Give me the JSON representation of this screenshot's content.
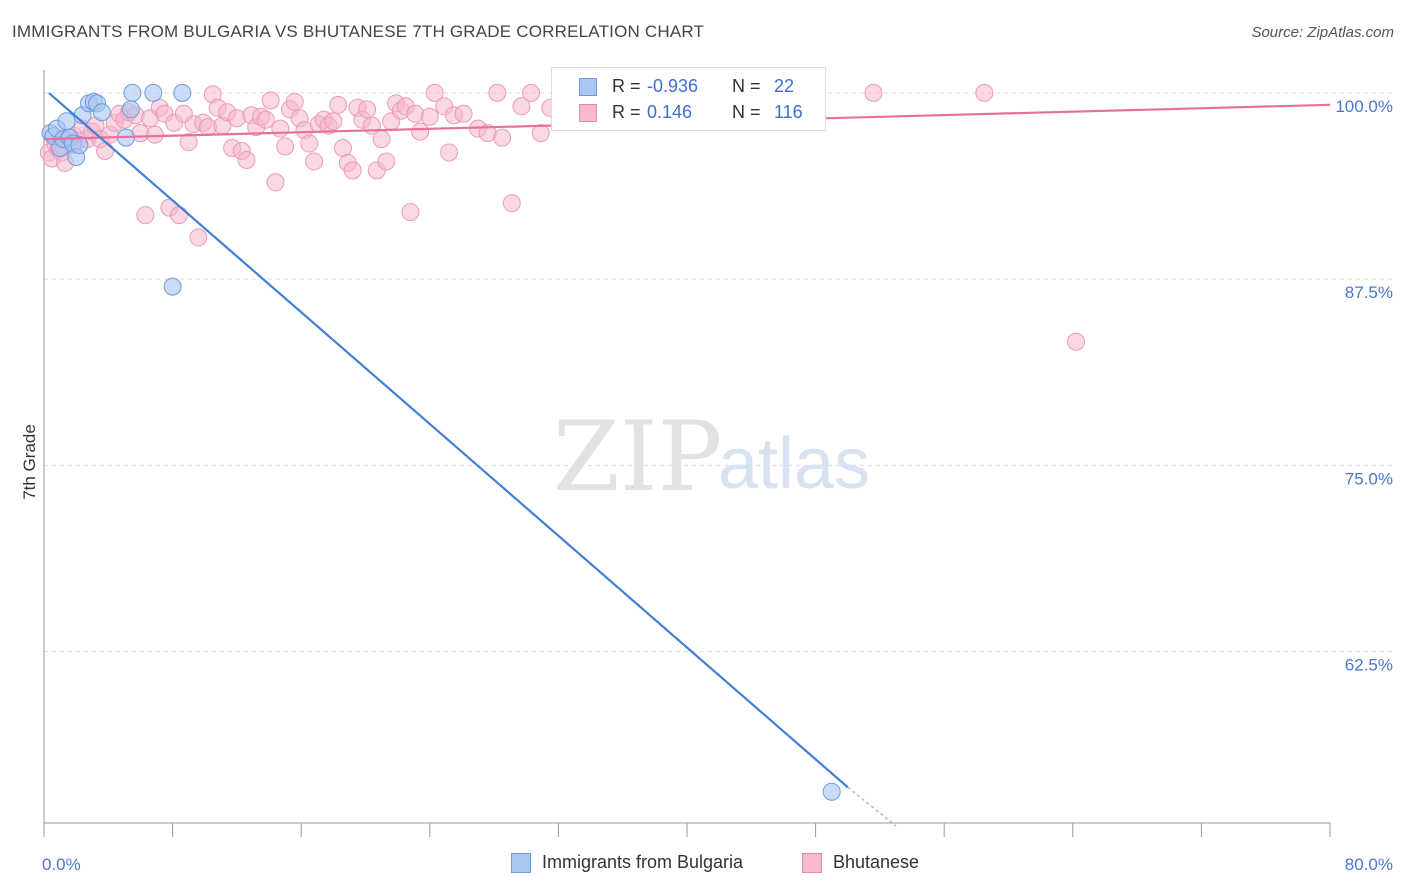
{
  "header": {
    "title": "IMMIGRANTS FROM BULGARIA VS BHUTANESE 7TH GRADE CORRELATION CHART",
    "source": "Source: ZipAtlas.com"
  },
  "watermark": {
    "zip": "ZIP",
    "atlas": "atlas"
  },
  "legend": {
    "rows": [
      {
        "r_label": "R =",
        "r_value": "-0.936",
        "n_label": "N =",
        "n_value": "22"
      },
      {
        "r_label": "R =",
        "r_value": "0.146",
        "n_label": "N =",
        "n_value": "116"
      }
    ]
  },
  "chart_data": {
    "type": "scatter",
    "title": "IMMIGRANTS FROM BULGARIA VS BHUTANESE 7TH GRADE CORRELATION CHART",
    "xlabel": "",
    "ylabel": "7th Grade",
    "xlim": [
      0,
      80
    ],
    "ylim": [
      51,
      101
    ],
    "x_tick_labels": [
      "0.0%",
      "80.0%"
    ],
    "y_ticks": [
      62.5,
      75.0,
      87.5,
      100.0
    ],
    "y_tick_labels": [
      "62.5%",
      "75.0%",
      "87.5%",
      "100.0%"
    ],
    "grid": true,
    "legend_position": "bottom",
    "colors": {
      "bulgaria": "#3f7fd6",
      "bhutanese": "#e8709a",
      "bulgaria_fill": "#a9c7f0",
      "bhutanese_fill": "#f5b8cc"
    },
    "series": [
      {
        "name": "Immigrants from Bulgaria",
        "r": -0.936,
        "n": 22,
        "trend": {
          "x": [
            0.3,
            50
          ],
          "y": [
            100.0,
            53.4
          ],
          "dash_to": [
            53,
            50.8
          ]
        },
        "points": [
          [
            0.4,
            97.3
          ],
          [
            0.6,
            97.1
          ],
          [
            0.8,
            97.6
          ],
          [
            1.0,
            96.3
          ],
          [
            1.2,
            96.9
          ],
          [
            1.4,
            98.1
          ],
          [
            1.6,
            97.0
          ],
          [
            1.8,
            96.6
          ],
          [
            2.0,
            95.7
          ],
          [
            2.2,
            96.5
          ],
          [
            2.4,
            98.5
          ],
          [
            2.8,
            99.3
          ],
          [
            3.1,
            99.4
          ],
          [
            3.3,
            99.3
          ],
          [
            3.6,
            98.7
          ],
          [
            5.1,
            97.0
          ],
          [
            5.4,
            98.9
          ],
          [
            5.5,
            100.0
          ],
          [
            6.8,
            100.0
          ],
          [
            8.6,
            100.0
          ],
          [
            8.0,
            87.0
          ],
          [
            49.0,
            53.1
          ]
        ]
      },
      {
        "name": "Bhutanese",
        "r": 0.146,
        "n": 116,
        "trend": {
          "x": [
            0,
            80
          ],
          "y": [
            96.9,
            99.2
          ]
        },
        "points": [
          [
            0.3,
            96.0
          ],
          [
            0.5,
            95.6
          ],
          [
            0.7,
            96.6
          ],
          [
            0.9,
            96.2
          ],
          [
            1.1,
            96.0
          ],
          [
            1.3,
            95.3
          ],
          [
            1.5,
            97.0
          ],
          [
            1.7,
            96.5
          ],
          [
            1.9,
            97.1
          ],
          [
            2.1,
            96.8
          ],
          [
            2.4,
            97.6
          ],
          [
            2.7,
            96.9
          ],
          [
            3.0,
            97.4
          ],
          [
            3.2,
            97.8
          ],
          [
            3.5,
            96.9
          ],
          [
            3.8,
            96.1
          ],
          [
            4.1,
            97.2
          ],
          [
            4.4,
            98.0
          ],
          [
            4.7,
            98.6
          ],
          [
            5.0,
            98.2
          ],
          [
            5.3,
            98.7
          ],
          [
            5.7,
            98.5
          ],
          [
            6.0,
            97.3
          ],
          [
            6.3,
            91.8
          ],
          [
            6.6,
            98.3
          ],
          [
            6.9,
            97.2
          ],
          [
            7.2,
            99.0
          ],
          [
            7.5,
            98.6
          ],
          [
            7.8,
            92.3
          ],
          [
            8.1,
            98.0
          ],
          [
            8.4,
            91.8
          ],
          [
            8.7,
            98.6
          ],
          [
            9.0,
            96.7
          ],
          [
            9.3,
            97.9
          ],
          [
            9.6,
            90.3
          ],
          [
            9.9,
            98.0
          ],
          [
            10.2,
            97.7
          ],
          [
            10.5,
            99.9
          ],
          [
            10.8,
            99.0
          ],
          [
            11.1,
            97.8
          ],
          [
            11.4,
            98.7
          ],
          [
            11.7,
            96.3
          ],
          [
            12.0,
            98.3
          ],
          [
            12.3,
            96.1
          ],
          [
            12.6,
            95.5
          ],
          [
            12.9,
            98.5
          ],
          [
            13.2,
            97.7
          ],
          [
            13.5,
            98.4
          ],
          [
            13.8,
            98.2
          ],
          [
            14.1,
            99.5
          ],
          [
            14.4,
            94.0
          ],
          [
            14.7,
            97.6
          ],
          [
            15.0,
            96.4
          ],
          [
            15.3,
            98.9
          ],
          [
            15.6,
            99.4
          ],
          [
            15.9,
            98.3
          ],
          [
            16.2,
            97.5
          ],
          [
            16.5,
            96.6
          ],
          [
            16.8,
            95.4
          ],
          [
            17.1,
            97.9
          ],
          [
            17.4,
            98.2
          ],
          [
            17.7,
            97.8
          ],
          [
            18.0,
            98.1
          ],
          [
            18.3,
            99.2
          ],
          [
            18.6,
            96.3
          ],
          [
            18.9,
            95.3
          ],
          [
            19.2,
            94.8
          ],
          [
            19.5,
            99.0
          ],
          [
            19.8,
            98.2
          ],
          [
            20.1,
            98.9
          ],
          [
            20.4,
            97.8
          ],
          [
            20.7,
            94.8
          ],
          [
            21.0,
            96.9
          ],
          [
            21.3,
            95.4
          ],
          [
            21.6,
            98.1
          ],
          [
            21.9,
            99.3
          ],
          [
            22.2,
            98.8
          ],
          [
            22.5,
            99.1
          ],
          [
            22.8,
            92.0
          ],
          [
            23.1,
            98.6
          ],
          [
            23.4,
            97.4
          ],
          [
            24.0,
            98.4
          ],
          [
            24.3,
            100.0
          ],
          [
            24.9,
            99.1
          ],
          [
            25.2,
            96.0
          ],
          [
            25.5,
            98.5
          ],
          [
            26.1,
            98.6
          ],
          [
            27.0,
            97.6
          ],
          [
            27.6,
            97.3
          ],
          [
            28.2,
            100.0
          ],
          [
            28.5,
            97.0
          ],
          [
            29.1,
            92.6
          ],
          [
            29.7,
            99.1
          ],
          [
            30.3,
            100.0
          ],
          [
            30.9,
            97.3
          ],
          [
            31.5,
            99.0
          ],
          [
            32.1,
            98.9
          ],
          [
            33.0,
            98.1
          ],
          [
            33.6,
            99.0
          ],
          [
            34.2,
            99.3
          ],
          [
            34.8,
            100.0
          ],
          [
            35.4,
            98.8
          ],
          [
            36.0,
            99.3
          ],
          [
            36.6,
            98.6
          ],
          [
            37.2,
            99.1
          ],
          [
            38.1,
            99.5
          ],
          [
            39.0,
            99.3
          ],
          [
            39.6,
            98.9
          ],
          [
            40.5,
            99.9
          ],
          [
            41.4,
            99.3
          ],
          [
            42.6,
            99.8
          ],
          [
            44.4,
            100.0
          ],
          [
            51.6,
            100.0
          ],
          [
            58.5,
            100.0
          ],
          [
            64.2,
            83.3
          ],
          [
            34.5,
            99.7
          ]
        ]
      }
    ]
  },
  "bottom_legend": [
    {
      "label": "Immigrants from Bulgaria"
    },
    {
      "label": "Bhutanese"
    }
  ]
}
